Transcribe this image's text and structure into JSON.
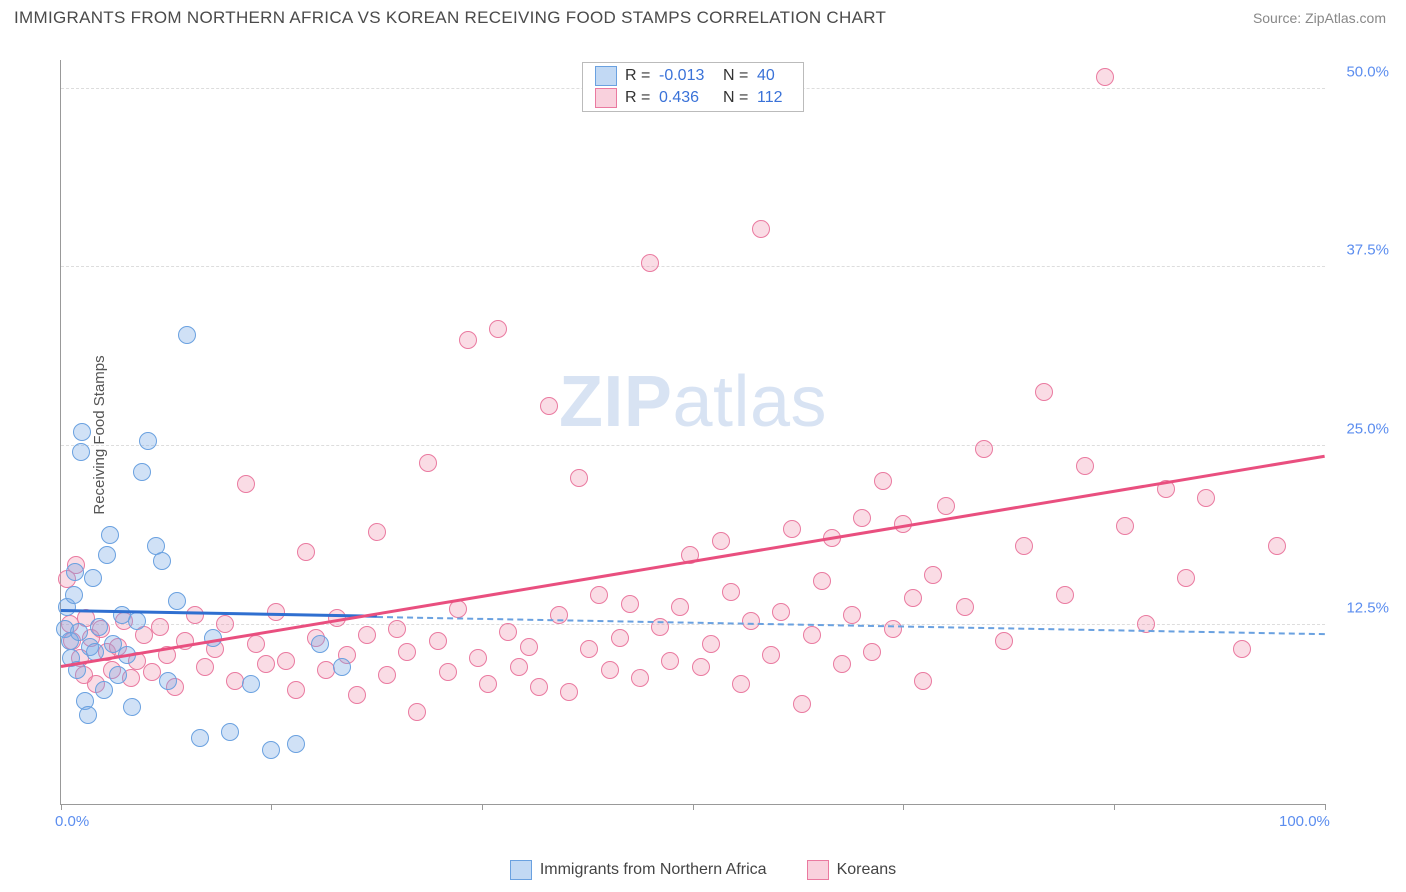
{
  "header": {
    "title": "IMMIGRANTS FROM NORTHERN AFRICA VS KOREAN RECEIVING FOOD STAMPS CORRELATION CHART",
    "source_prefix": "Source: ",
    "source_name": "ZipAtlas.com"
  },
  "watermark": {
    "zip": "ZIP",
    "rest": "atlas"
  },
  "y_axis": {
    "label": "Receiving Food Stamps"
  },
  "chart": {
    "type": "scatter",
    "xlim": [
      0,
      100
    ],
    "ylim": [
      0,
      52
    ],
    "xticks": [
      0,
      50,
      100
    ],
    "xtick_labels": [
      "0.0%",
      "",
      "100.0%"
    ],
    "xtick_marks": [
      0,
      16.6,
      33.3,
      50,
      66.6,
      83.3,
      100
    ],
    "yticks": [
      12.5,
      25.0,
      37.5,
      50.0
    ],
    "ytick_labels": [
      "12.5%",
      "25.0%",
      "37.5%",
      "50.0%"
    ],
    "grid_color": "#dddddd",
    "background_color": "#ffffff",
    "marker_radius": 8,
    "series": [
      {
        "name": "Immigrants from Northern Africa",
        "color_fill": "rgba(120,170,230,0.35)",
        "color_stroke": "#6aa1e0",
        "R": "-0.013",
        "N": "40",
        "trend": {
          "solid_until_x": 25,
          "y_at_0": 13.4,
          "y_at_100": 11.8,
          "color": "#2f6fd0"
        },
        "points": [
          [
            0.3,
            12.2
          ],
          [
            0.5,
            13.8
          ],
          [
            0.7,
            11.4
          ],
          [
            0.8,
            10.2
          ],
          [
            1.0,
            14.6
          ],
          [
            1.1,
            16.2
          ],
          [
            1.3,
            9.4
          ],
          [
            1.4,
            12.0
          ],
          [
            1.6,
            24.6
          ],
          [
            1.7,
            26.0
          ],
          [
            1.9,
            7.2
          ],
          [
            2.1,
            6.2
          ],
          [
            2.3,
            11.0
          ],
          [
            2.5,
            15.8
          ],
          [
            2.7,
            10.6
          ],
          [
            3.0,
            12.4
          ],
          [
            3.4,
            8.0
          ],
          [
            3.6,
            17.4
          ],
          [
            3.9,
            18.8
          ],
          [
            4.1,
            11.2
          ],
          [
            4.5,
            9.0
          ],
          [
            4.8,
            13.2
          ],
          [
            5.2,
            10.4
          ],
          [
            5.6,
            6.8
          ],
          [
            6.0,
            12.8
          ],
          [
            6.4,
            23.2
          ],
          [
            6.9,
            25.4
          ],
          [
            7.5,
            18.0
          ],
          [
            8.0,
            17.0
          ],
          [
            8.5,
            8.6
          ],
          [
            9.2,
            14.2
          ],
          [
            10.0,
            32.8
          ],
          [
            11.0,
            4.6
          ],
          [
            12.0,
            11.6
          ],
          [
            13.4,
            5.0
          ],
          [
            15.0,
            8.4
          ],
          [
            16.6,
            3.8
          ],
          [
            18.6,
            4.2
          ],
          [
            20.5,
            11.2
          ],
          [
            22.2,
            9.6
          ]
        ]
      },
      {
        "name": "Koreans",
        "color_fill": "rgba(240,140,170,0.30)",
        "color_stroke": "#ea7aa0",
        "R": "0.436",
        "N": "112",
        "trend": {
          "y_at_0": 9.5,
          "y_at_100": 24.2,
          "color": "#e94f7f"
        },
        "points": [
          [
            0.5,
            15.7
          ],
          [
            0.7,
            12.6
          ],
          [
            0.9,
            11.4
          ],
          [
            1.2,
            16.7
          ],
          [
            1.5,
            10.2
          ],
          [
            1.8,
            9.0
          ],
          [
            2.0,
            13.0
          ],
          [
            2.4,
            11.6
          ],
          [
            2.8,
            8.4
          ],
          [
            3.2,
            12.2
          ],
          [
            3.6,
            10.6
          ],
          [
            4.0,
            9.4
          ],
          [
            4.5,
            11.0
          ],
          [
            5.0,
            12.8
          ],
          [
            5.5,
            8.8
          ],
          [
            6.0,
            10.0
          ],
          [
            6.6,
            11.8
          ],
          [
            7.2,
            9.2
          ],
          [
            7.8,
            12.4
          ],
          [
            8.4,
            10.4
          ],
          [
            9.0,
            8.2
          ],
          [
            9.8,
            11.4
          ],
          [
            10.6,
            13.2
          ],
          [
            11.4,
            9.6
          ],
          [
            12.2,
            10.8
          ],
          [
            13.0,
            12.6
          ],
          [
            13.8,
            8.6
          ],
          [
            14.6,
            22.4
          ],
          [
            15.4,
            11.2
          ],
          [
            16.2,
            9.8
          ],
          [
            17.0,
            13.4
          ],
          [
            17.8,
            10.0
          ],
          [
            18.6,
            8.0
          ],
          [
            19.4,
            17.6
          ],
          [
            20.2,
            11.6
          ],
          [
            21.0,
            9.4
          ],
          [
            21.8,
            13.0
          ],
          [
            22.6,
            10.4
          ],
          [
            23.4,
            7.6
          ],
          [
            24.2,
            11.8
          ],
          [
            25.0,
            19.0
          ],
          [
            25.8,
            9.0
          ],
          [
            26.6,
            12.2
          ],
          [
            27.4,
            10.6
          ],
          [
            28.2,
            6.4
          ],
          [
            29.0,
            23.8
          ],
          [
            29.8,
            11.4
          ],
          [
            30.6,
            9.2
          ],
          [
            31.4,
            13.6
          ],
          [
            32.2,
            32.4
          ],
          [
            33.0,
            10.2
          ],
          [
            33.8,
            8.4
          ],
          [
            34.6,
            33.2
          ],
          [
            35.4,
            12.0
          ],
          [
            36.2,
            9.6
          ],
          [
            37.0,
            11.0
          ],
          [
            37.8,
            8.2
          ],
          [
            38.6,
            27.8
          ],
          [
            39.4,
            13.2
          ],
          [
            40.2,
            7.8
          ],
          [
            41.0,
            22.8
          ],
          [
            41.8,
            10.8
          ],
          [
            42.6,
            14.6
          ],
          [
            43.4,
            9.4
          ],
          [
            44.2,
            11.6
          ],
          [
            45.0,
            14.0
          ],
          [
            45.8,
            8.8
          ],
          [
            46.6,
            37.8
          ],
          [
            47.4,
            12.4
          ],
          [
            48.2,
            10.0
          ],
          [
            49.0,
            13.8
          ],
          [
            49.8,
            17.4
          ],
          [
            50.6,
            9.6
          ],
          [
            51.4,
            11.2
          ],
          [
            52.2,
            18.4
          ],
          [
            53.0,
            14.8
          ],
          [
            53.8,
            8.4
          ],
          [
            54.6,
            12.8
          ],
          [
            55.4,
            40.2
          ],
          [
            56.2,
            10.4
          ],
          [
            57.0,
            13.4
          ],
          [
            57.8,
            19.2
          ],
          [
            58.6,
            7.0
          ],
          [
            59.4,
            11.8
          ],
          [
            60.2,
            15.6
          ],
          [
            61.0,
            18.6
          ],
          [
            61.8,
            9.8
          ],
          [
            62.6,
            13.2
          ],
          [
            63.4,
            20.0
          ],
          [
            64.2,
            10.6
          ],
          [
            65.0,
            22.6
          ],
          [
            65.8,
            12.2
          ],
          [
            66.6,
            19.6
          ],
          [
            67.4,
            14.4
          ],
          [
            68.2,
            8.6
          ],
          [
            69.0,
            16.0
          ],
          [
            70.0,
            20.8
          ],
          [
            71.5,
            13.8
          ],
          [
            73.0,
            24.8
          ],
          [
            74.6,
            11.4
          ],
          [
            76.2,
            18.0
          ],
          [
            77.8,
            28.8
          ],
          [
            79.4,
            14.6
          ],
          [
            81.0,
            23.6
          ],
          [
            82.6,
            50.8
          ],
          [
            84.2,
            19.4
          ],
          [
            85.8,
            12.6
          ],
          [
            87.4,
            22.0
          ],
          [
            89.0,
            15.8
          ],
          [
            90.6,
            21.4
          ],
          [
            93.4,
            10.8
          ],
          [
            96.2,
            18.0
          ]
        ]
      }
    ]
  },
  "stats_labels": {
    "R": "R =",
    "N": "N ="
  },
  "legend": {
    "item1": "Immigrants from Northern Africa",
    "item2": "Koreans"
  }
}
